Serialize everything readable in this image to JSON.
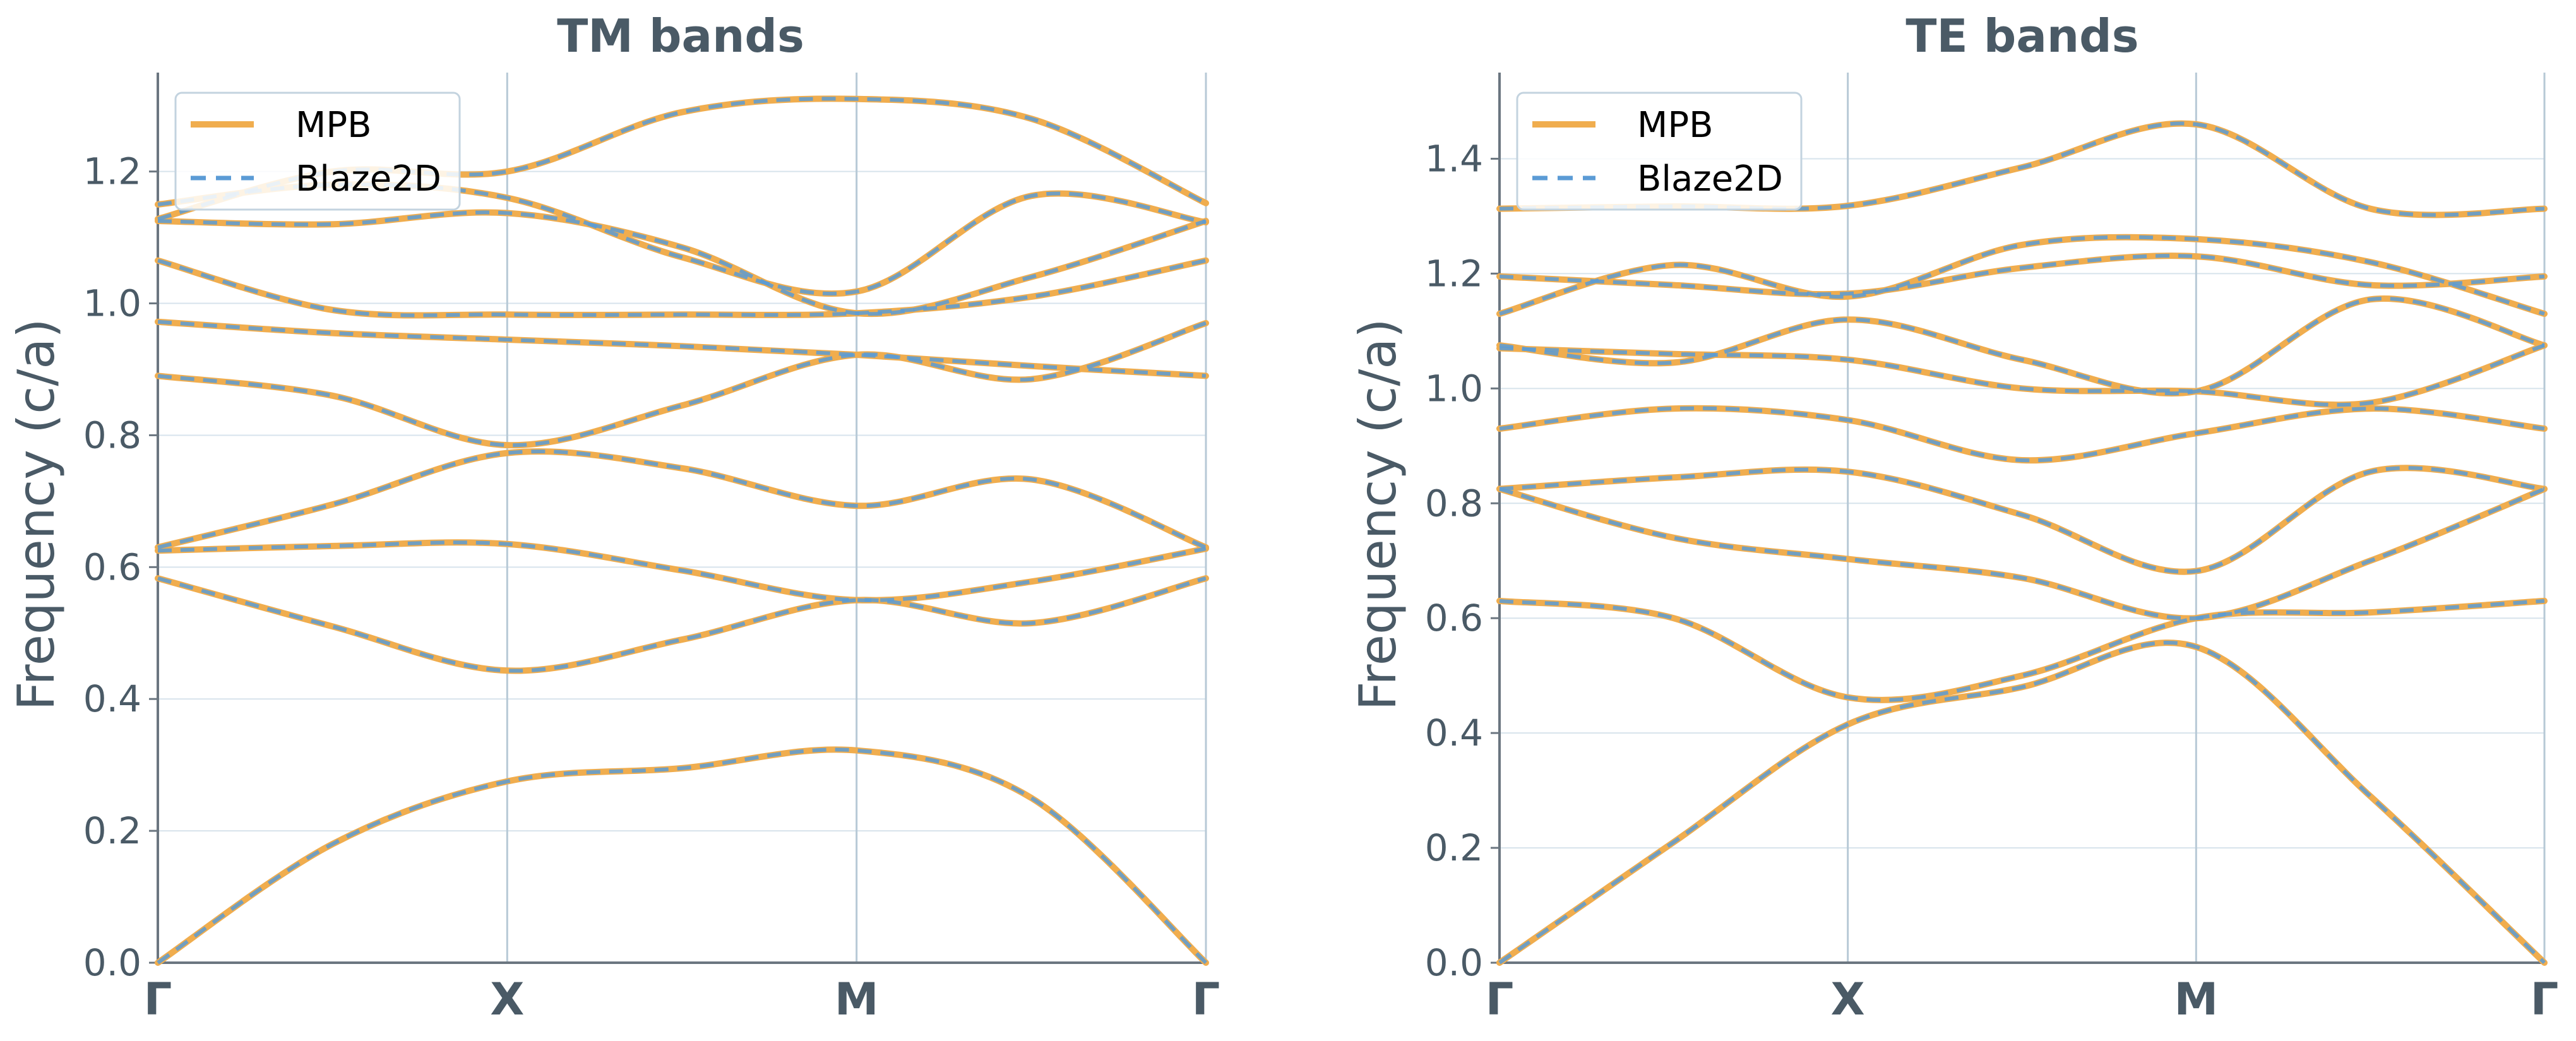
{
  "colors": {
    "mpb": "#f0ad4e",
    "blaze": "#5b9bd5",
    "grid": "#d7e3ec",
    "vline": "#b7c9d6",
    "axis": "#6b7680",
    "text": "#4a5a66"
  },
  "chart_data": [
    {
      "type": "line",
      "title": "TM bands",
      "ylabel": "Frequency (c/a)",
      "ylim": [
        0,
        1.35
      ],
      "yticks": [
        "0.0",
        "0.2",
        "0.4",
        "0.6",
        "0.8",
        "1.0",
        "1.2"
      ],
      "x_ticks": [
        "Γ",
        "X",
        "M",
        "Γ"
      ],
      "grid": true,
      "legend": {
        "position": "top-left",
        "entries": [
          "MPB",
          "Blaze2D"
        ]
      },
      "bands": [
        [
          [
            0,
            0
          ],
          [
            0.5,
            0.18
          ],
          [
            1,
            0.275
          ],
          [
            1.5,
            0.295
          ],
          [
            2,
            0.322
          ],
          [
            2.5,
            0.25
          ],
          [
            3,
            0
          ]
        ],
        [
          [
            0,
            0.583
          ],
          [
            0.5,
            0.51
          ],
          [
            1,
            0.443
          ],
          [
            1.5,
            0.49
          ],
          [
            2,
            0.55
          ],
          [
            2.5,
            0.515
          ],
          [
            3,
            0.583
          ]
        ],
        [
          [
            0,
            0.625
          ],
          [
            0.5,
            0.632
          ],
          [
            1,
            0.635
          ],
          [
            1.5,
            0.595
          ],
          [
            2,
            0.55
          ],
          [
            2.5,
            0.578
          ],
          [
            3,
            0.628
          ]
        ],
        [
          [
            0,
            0.63
          ],
          [
            0.5,
            0.695
          ],
          [
            1,
            0.773
          ],
          [
            1.5,
            0.75
          ],
          [
            2,
            0.693
          ],
          [
            2.5,
            0.733
          ],
          [
            3,
            0.63
          ]
        ],
        [
          [
            0,
            0.89
          ],
          [
            0.5,
            0.86
          ],
          [
            1,
            0.785
          ],
          [
            1.5,
            0.845
          ],
          [
            2,
            0.922
          ],
          [
            2.5,
            0.885
          ],
          [
            3,
            0.97
          ]
        ],
        [
          [
            0,
            0.972
          ],
          [
            0.5,
            0.955
          ],
          [
            1,
            0.945
          ],
          [
            1.5,
            0.935
          ],
          [
            2,
            0.922
          ],
          [
            2.5,
            0.905
          ],
          [
            3,
            0.89
          ]
        ],
        [
          [
            0,
            1.065
          ],
          [
            0.5,
            0.99
          ],
          [
            1,
            0.983
          ],
          [
            1.5,
            0.983
          ],
          [
            2,
            0.985
          ],
          [
            2.5,
            1.01
          ],
          [
            3,
            1.065
          ]
        ],
        [
          [
            0,
            1.125
          ],
          [
            0.5,
            1.12
          ],
          [
            1,
            1.137
          ],
          [
            1.5,
            1.085
          ],
          [
            2,
            0.985
          ],
          [
            2.5,
            1.04
          ],
          [
            3,
            1.125
          ]
        ],
        [
          [
            0,
            1.15
          ],
          [
            0.5,
            1.18
          ],
          [
            1,
            1.16
          ],
          [
            1.5,
            1.07
          ],
          [
            2,
            1.018
          ],
          [
            2.5,
            1.163
          ],
          [
            3,
            1.123
          ]
        ],
        [
          [
            0,
            1.128
          ],
          [
            0.5,
            1.2
          ],
          [
            1,
            1.2
          ],
          [
            1.5,
            1.29
          ],
          [
            2,
            1.31
          ],
          [
            2.5,
            1.28
          ],
          [
            3,
            1.152
          ]
        ]
      ]
    },
    {
      "type": "line",
      "title": "TE bands",
      "ylabel": "Frequency (c/a)",
      "ylim": [
        0,
        1.55
      ],
      "yticks": [
        "0.0",
        "0.2",
        "0.4",
        "0.6",
        "0.8",
        "1.0",
        "1.2",
        "1.4"
      ],
      "x_ticks": [
        "Γ",
        "X",
        "M",
        "Γ"
      ],
      "grid": true,
      "legend": {
        "position": "top-left",
        "entries": [
          "MPB",
          "Blaze2D"
        ]
      },
      "bands": [
        [
          [
            0,
            0
          ],
          [
            0.5,
            0.21
          ],
          [
            1,
            0.415
          ],
          [
            1.5,
            0.48
          ],
          [
            2,
            0.55
          ],
          [
            2.5,
            0.29
          ],
          [
            3,
            0
          ]
        ],
        [
          [
            0,
            0.63
          ],
          [
            0.5,
            0.6
          ],
          [
            1,
            0.462
          ],
          [
            1.5,
            0.5
          ],
          [
            2,
            0.6
          ],
          [
            2.5,
            0.61
          ],
          [
            3,
            0.63
          ]
        ],
        [
          [
            0,
            0.825
          ],
          [
            0.5,
            0.74
          ],
          [
            1,
            0.703
          ],
          [
            1.5,
            0.67
          ],
          [
            2,
            0.6
          ],
          [
            2.5,
            0.7
          ],
          [
            3,
            0.825
          ]
        ],
        [
          [
            0,
            0.825
          ],
          [
            0.5,
            0.845
          ],
          [
            1,
            0.855
          ],
          [
            1.5,
            0.78
          ],
          [
            2,
            0.682
          ],
          [
            2.5,
            0.855
          ],
          [
            3,
            0.825
          ]
        ],
        [
          [
            0,
            0.93
          ],
          [
            0.5,
            0.965
          ],
          [
            1,
            0.945
          ],
          [
            1.5,
            0.875
          ],
          [
            2,
            0.922
          ],
          [
            2.5,
            0.965
          ],
          [
            3,
            0.93
          ]
        ],
        [
          [
            0,
            1.07
          ],
          [
            0.5,
            1.06
          ],
          [
            1,
            1.05
          ],
          [
            1.5,
            1.0
          ],
          [
            2,
            0.995
          ],
          [
            2.5,
            0.975
          ],
          [
            3,
            1.075
          ]
        ],
        [
          [
            0,
            1.075
          ],
          [
            0.5,
            1.045
          ],
          [
            1,
            1.12
          ],
          [
            1.5,
            1.05
          ],
          [
            2,
            0.995
          ],
          [
            2.5,
            1.155
          ],
          [
            3,
            1.075
          ]
        ],
        [
          [
            0,
            1.13
          ],
          [
            0.5,
            1.215
          ],
          [
            1,
            1.16
          ],
          [
            1.5,
            1.25
          ],
          [
            2,
            1.26
          ],
          [
            2.5,
            1.22
          ],
          [
            3,
            1.13
          ]
        ],
        [
          [
            0,
            1.195
          ],
          [
            0.5,
            1.18
          ],
          [
            1,
            1.165
          ],
          [
            1.5,
            1.21
          ],
          [
            2,
            1.23
          ],
          [
            2.5,
            1.18
          ],
          [
            3,
            1.195
          ]
        ],
        [
          [
            0,
            1.313
          ],
          [
            0.5,
            1.317
          ],
          [
            1,
            1.318
          ],
          [
            1.5,
            1.385
          ],
          [
            2,
            1.46
          ],
          [
            2.5,
            1.313
          ],
          [
            3,
            1.313
          ]
        ]
      ]
    }
  ]
}
